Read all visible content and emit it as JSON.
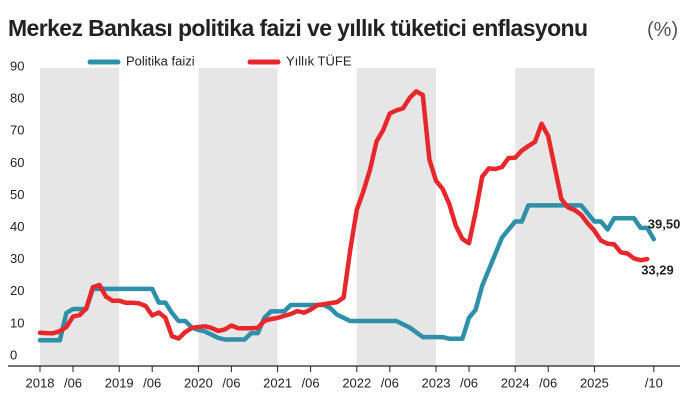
{
  "chart_data": {
    "type": "line",
    "title": "Merkez Bankası politika faizi ve yıllık tüketici enflasyonu",
    "unit": "(%)",
    "categories": [
      "2018",
      null,
      null,
      null,
      null,
      "/06",
      null,
      null,
      null,
      null,
      null,
      null,
      "2019",
      null,
      null,
      null,
      null,
      "/06",
      null,
      null,
      null,
      null,
      null,
      null,
      "2020",
      null,
      null,
      null,
      null,
      "/06",
      null,
      null,
      null,
      null,
      null,
      null,
      "2021",
      null,
      null,
      null,
      null,
      "/06",
      null,
      null,
      null,
      null,
      null,
      null,
      "2022",
      null,
      null,
      null,
      null,
      "/06",
      null,
      null,
      null,
      null,
      null,
      null,
      "2023",
      null,
      null,
      null,
      null,
      "/06",
      null,
      null,
      null,
      null,
      null,
      null,
      "2024",
      null,
      null,
      null,
      null,
      "/06",
      null,
      null,
      null,
      null,
      null,
      null,
      "2025",
      null,
      null,
      null,
      null,
      null,
      null,
      null,
      null,
      "/10"
    ],
    "series": [
      {
        "name": "Politika faizi",
        "color": "#2e8fa8",
        "values": [
          8,
          8,
          8,
          8,
          16.5,
          17.75,
          17.75,
          17.75,
          24,
          24,
          24,
          24,
          24,
          24,
          24,
          24,
          24,
          24,
          19.75,
          19.75,
          16.5,
          14,
          14,
          12,
          11.25,
          10.75,
          9.75,
          8.75,
          8.25,
          8.25,
          8.25,
          8.25,
          10.25,
          10.25,
          15,
          17,
          17,
          17,
          19,
          19,
          19,
          19,
          19,
          19,
          18,
          16,
          15,
          14,
          14,
          14,
          14,
          14,
          14,
          14,
          14,
          13,
          12,
          10.5,
          9,
          9,
          9,
          9,
          8.5,
          8.5,
          8.5,
          15,
          17.5,
          25,
          30,
          35,
          40,
          42.5,
          45,
          45,
          50,
          50,
          50,
          50,
          50,
          50,
          50,
          50,
          50,
          47.5,
          45,
          45,
          42.5,
          46,
          46,
          46,
          46,
          43,
          43,
          39.5
        ],
        "value_labels": [
          null,
          null,
          null,
          null,
          null,
          null,
          null,
          null,
          null,
          null,
          null,
          null,
          null,
          null,
          null,
          null,
          null,
          null,
          null,
          null,
          null,
          null,
          null,
          null,
          null,
          null,
          null,
          null,
          null,
          null,
          null,
          null,
          null,
          null,
          null,
          null,
          null,
          null,
          null,
          null,
          null,
          null,
          null,
          null,
          null,
          null,
          null,
          null,
          null,
          null,
          null,
          null,
          null,
          null,
          null,
          null,
          null,
          null,
          null,
          null,
          null,
          null,
          null,
          null,
          null,
          null,
          null,
          null,
          null,
          null,
          null,
          null,
          null,
          null,
          null,
          null,
          null,
          null,
          null,
          null,
          null,
          null,
          null,
          null,
          null,
          null,
          null,
          null,
          null,
          null,
          null,
          null,
          null,
          "39,50"
        ]
      },
      {
        "name": "Yıllık TÜFE",
        "color": "#e8272c",
        "values": [
          10.35,
          10.26,
          10.23,
          10.85,
          12.15,
          15.39,
          15.85,
          17.9,
          24.52,
          25.24,
          21.62,
          20.3,
          20.35,
          19.67,
          19.71,
          19.5,
          18.71,
          15.72,
          16.65,
          15.01,
          9.26,
          8.55,
          10.56,
          11.84,
          12.15,
          12.37,
          11.86,
          10.94,
          11.39,
          12.62,
          11.76,
          11.77,
          11.75,
          11.89,
          14.03,
          14.6,
          14.97,
          15.61,
          16.19,
          17.14,
          16.59,
          17.53,
          18.95,
          19.25,
          19.58,
          19.89,
          21.31,
          36.08,
          48.69,
          54.44,
          61.14,
          69.97,
          73.5,
          78.62,
          79.6,
          80.21,
          83.45,
          85.51,
          84.39,
          64.27,
          57.68,
          55.18,
          50.51,
          43.68,
          39.59,
          38.21,
          47.83,
          58.94,
          61.53,
          61.36,
          61.98,
          64.77,
          64.86,
          67.07,
          68.5,
          69.8,
          75.45,
          71.6,
          61.78,
          51.97,
          49.38,
          48.58,
          47.09,
          44.38,
          42.12,
          39.05,
          38.1,
          37.86,
          35.41,
          35.05,
          33.52,
          32.95,
          33.29,
          null
        ],
        "value_labels": [
          null,
          null,
          null,
          null,
          null,
          null,
          null,
          null,
          null,
          null,
          null,
          null,
          null,
          null,
          null,
          null,
          null,
          null,
          null,
          null,
          null,
          null,
          null,
          null,
          null,
          null,
          null,
          null,
          null,
          null,
          null,
          null,
          null,
          null,
          null,
          null,
          null,
          null,
          null,
          null,
          null,
          null,
          null,
          null,
          null,
          null,
          null,
          null,
          null,
          null,
          null,
          null,
          null,
          null,
          null,
          null,
          null,
          null,
          null,
          null,
          null,
          null,
          null,
          null,
          null,
          null,
          null,
          null,
          null,
          null,
          null,
          null,
          null,
          null,
          null,
          null,
          null,
          null,
          null,
          null,
          null,
          null,
          null,
          null,
          null,
          null,
          null,
          null,
          null,
          null,
          null,
          null,
          "33,29",
          null
        ]
      }
    ],
    "ylim": [
      0,
      90
    ],
    "yticks": [
      0,
      10,
      20,
      30,
      40,
      50,
      60,
      70,
      80,
      90
    ]
  }
}
